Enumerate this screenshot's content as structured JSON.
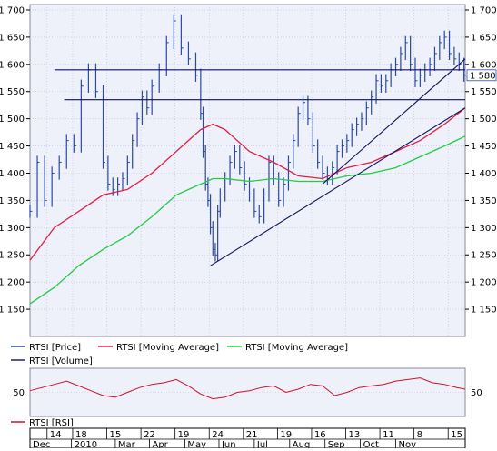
{
  "colors": {
    "background": "#ffffff",
    "plot_background": "#eef1fa",
    "grid": "#b9c0d8",
    "price": "#2c4aa0",
    "moving_average_1": "#e0204a",
    "moving_average_2": "#22cc44",
    "volume": "#1a1a8a",
    "trendline": "#101060",
    "rsi": "#d01030"
  },
  "chart_data": [
    {
      "type": "line",
      "panel": "price",
      "grid": true,
      "ylim": [
        1100,
        1710
      ],
      "y_ticks": [
        1150,
        1200,
        1250,
        1300,
        1350,
        1400,
        1450,
        1500,
        1550,
        1600,
        1650,
        1700
      ],
      "y_tick_labels": [
        "1 150",
        "1 200",
        "1 250",
        "1 300",
        "1 350",
        "1 400",
        "1 450",
        "1 500",
        "1 550",
        "1 600",
        "1 650",
        "1 700"
      ],
      "last_value_label": "1 580",
      "x_range_days": [
        0,
        357
      ],
      "series": [
        {
          "name": "RTSI [Price]",
          "style": "hlc-bars",
          "x_days": [
            0,
            6,
            12,
            18,
            24,
            30,
            36,
            42,
            48,
            54,
            60,
            64,
            68,
            72,
            76,
            80,
            84,
            88,
            92,
            96,
            100,
            106,
            112,
            118,
            124,
            130,
            136,
            140,
            142,
            144,
            146,
            148,
            150,
            152,
            154,
            156,
            160,
            164,
            168,
            172,
            176,
            180,
            184,
            188,
            192,
            196,
            200,
            204,
            208,
            212,
            216,
            220,
            224,
            228,
            232,
            236,
            240,
            244,
            248,
            252,
            256,
            260,
            264,
            268,
            272,
            276,
            280,
            284,
            288,
            292,
            296,
            300,
            304,
            308,
            312,
            316,
            320,
            324,
            328,
            332,
            336,
            340,
            344,
            348,
            352,
            356
          ],
          "values": [
            1330,
            1420,
            1350,
            1400,
            1420,
            1460,
            1450,
            1560,
            1590,
            1550,
            1420,
            1380,
            1370,
            1380,
            1390,
            1420,
            1460,
            1500,
            1540,
            1520,
            1560,
            1590,
            1640,
            1680,
            1630,
            1610,
            1580,
            1510,
            1440,
            1380,
            1350,
            1300,
            1260,
            1250,
            1330,
            1360,
            1390,
            1420,
            1440,
            1410,
            1380,
            1360,
            1330,
            1320,
            1360,
            1420,
            1390,
            1350,
            1380,
            1420,
            1460,
            1510,
            1530,
            1500,
            1450,
            1420,
            1400,
            1390,
            1410,
            1440,
            1450,
            1460,
            1480,
            1490,
            1500,
            1520,
            1540,
            1570,
            1560,
            1570,
            1590,
            1600,
            1620,
            1640,
            1600,
            1570,
            1580,
            1590,
            1600,
            1620,
            1640,
            1650,
            1620,
            1610,
            1600,
            1580
          ]
        },
        {
          "name": "RTSI [Moving Average]",
          "x_days": [
            0,
            20,
            40,
            60,
            80,
            100,
            120,
            140,
            150,
            160,
            180,
            200,
            220,
            240,
            260,
            280,
            300,
            320,
            340,
            357
          ],
          "values": [
            1240,
            1300,
            1330,
            1360,
            1370,
            1400,
            1440,
            1480,
            1490,
            1480,
            1440,
            1420,
            1395,
            1390,
            1410,
            1420,
            1440,
            1460,
            1490,
            1520
          ]
        },
        {
          "name": "RTSI [Moving Average]",
          "x_days": [
            0,
            20,
            40,
            60,
            80,
            100,
            120,
            140,
            150,
            160,
            180,
            200,
            220,
            240,
            260,
            280,
            300,
            320,
            340,
            357
          ],
          "values": [
            1160,
            1190,
            1230,
            1260,
            1285,
            1320,
            1360,
            1380,
            1390,
            1390,
            1385,
            1390,
            1385,
            1385,
            1395,
            1400,
            1410,
            1430,
            1450,
            1468
          ]
        }
      ],
      "reference_lines": [
        {
          "x_days": [
            20,
            357
          ],
          "values": [
            1590,
            1590
          ]
        },
        {
          "x_days": [
            28,
            357
          ],
          "values": [
            1535,
            1535
          ]
        },
        {
          "x_days": [
            148,
            357
          ],
          "values": [
            1230,
            1520
          ]
        },
        {
          "x_days": [
            240,
            357
          ],
          "values": [
            1380,
            1610
          ]
        }
      ]
    },
    {
      "type": "line",
      "panel": "rsi",
      "grid": true,
      "ylim": [
        20,
        80
      ],
      "y_ticks": [
        50
      ],
      "y_tick_labels": [
        "50"
      ],
      "series": [
        {
          "name": "RTSI [RSI]",
          "x_days": [
            0,
            10,
            20,
            30,
            40,
            50,
            60,
            70,
            80,
            90,
            100,
            110,
            120,
            130,
            140,
            150,
            160,
            170,
            180,
            190,
            200,
            210,
            220,
            230,
            240,
            250,
            260,
            270,
            280,
            290,
            300,
            310,
            320,
            330,
            340,
            350,
            357
          ],
          "values": [
            52,
            56,
            60,
            64,
            58,
            52,
            46,
            44,
            50,
            56,
            60,
            62,
            66,
            58,
            48,
            42,
            44,
            50,
            52,
            56,
            58,
            50,
            54,
            60,
            58,
            46,
            50,
            56,
            58,
            60,
            64,
            66,
            68,
            62,
            60,
            56,
            54
          ]
        }
      ]
    }
  ],
  "legend": {
    "row1": [
      {
        "label": "RTSI [Price]",
        "color_key": "price"
      },
      {
        "label": "RTSI [Moving Average]",
        "color_key": "moving_average_1"
      },
      {
        "label": "RTSI [Moving Average]",
        "color_key": "moving_average_2"
      }
    ],
    "row2": [
      {
        "label": "RTSI [Volume]",
        "color_key": "volume"
      }
    ],
    "rsi": {
      "label": "RTSI [RSI]",
      "color_key": "rsi"
    }
  },
  "date_axis": {
    "days_row": [
      {
        "day": 14,
        "label": "14"
      },
      {
        "day": 35,
        "label": "18"
      },
      {
        "day": 63,
        "label": "15"
      },
      {
        "day": 91,
        "label": "22"
      },
      {
        "day": 119,
        "label": "19"
      },
      {
        "day": 147,
        "label": "24"
      },
      {
        "day": 175,
        "label": "21"
      },
      {
        "day": 203,
        "label": "19"
      },
      {
        "day": 231,
        "label": "16"
      },
      {
        "day": 259,
        "label": "13"
      },
      {
        "day": 287,
        "label": "11"
      },
      {
        "day": 315,
        "label": "8"
      },
      {
        "day": 343,
        "label": "15"
      }
    ],
    "months_row": [
      {
        "day": 0,
        "label": "Dec"
      },
      {
        "day": 34,
        "label": "2010"
      },
      {
        "day": 70,
        "label": "Mar"
      },
      {
        "day": 98,
        "label": "Apr"
      },
      {
        "day": 127,
        "label": "May"
      },
      {
        "day": 155,
        "label": "Jun"
      },
      {
        "day": 184,
        "label": "Jul"
      },
      {
        "day": 213,
        "label": "Aug"
      },
      {
        "day": 242,
        "label": "Sep"
      },
      {
        "day": 271,
        "label": "Oct"
      },
      {
        "day": 300,
        "label": "Nov"
      }
    ]
  }
}
